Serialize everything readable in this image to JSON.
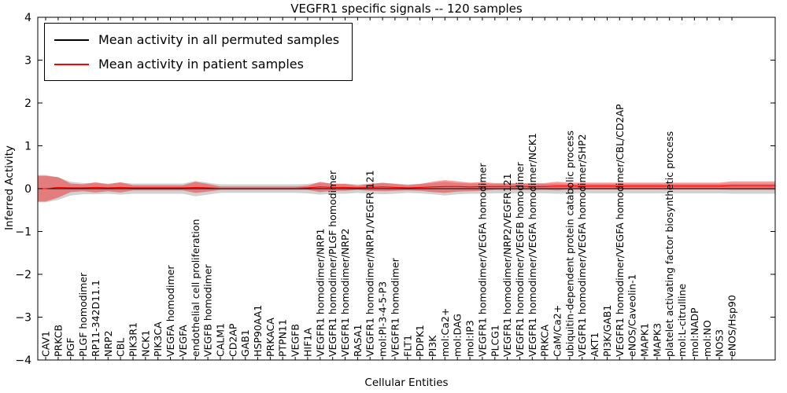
{
  "chart_data": {
    "type": "area",
    "title": "VEGFR1 specific signals -- 120 samples",
    "xlabel": "Cellular Entities",
    "ylabel": "Inferred Activity",
    "ylim": [
      -4,
      4
    ],
    "yticks": [
      -4,
      -3,
      -2,
      -1,
      0,
      1,
      2,
      3,
      4
    ],
    "grid": false,
    "legend_position": "upper-left",
    "legend": [
      {
        "label": "Mean activity in all permuted samples",
        "color": "#000000"
      },
      {
        "label": "Mean activity in patient samples",
        "color": "#ff0000"
      }
    ],
    "categories": [
      "CAV1",
      "PRKCB",
      "PGF",
      "PLGF homodimer",
      "RP11-342D11.1",
      "NRP2",
      "CBL",
      "PIK3R1",
      "NCK1",
      "PIK3CA",
      "VEGFA homodimer",
      "VEGFA",
      "endothelial cell proliferation",
      "VEGFB homodimer",
      "CALM1",
      "CD2AP",
      "GAB1",
      "HSP90AA1",
      "PRKACA",
      "PTPN11",
      "VEGFB",
      "HIF1A",
      "VEGFR1 homodimer/NRP1",
      "VEGFR1 homodimer/PLGF homodimer",
      "VEGFR1 homodimer/NRP2",
      "RASA1",
      "VEGFR1 homodimer/NRP1/VEGFR 121",
      "mol:PI-3-4-5-P3",
      "VEGFR1 homodimer",
      "FLT1",
      "PDPK1",
      "PI3K",
      "mol:Ca2+",
      "mol:DAG",
      "mol:IP3",
      "VEGFR1 homodimer/VEGFA homodimer",
      "PLCG1",
      "VEGFR1 homodimer/NRP2/VEGFR121",
      "VEGFR1 homodimer/VEGFB homodimer",
      "VEGFR1 homodimer/VEGFA homodimer/NCK1",
      "PRKCA",
      "CaM/Ca2+",
      "ubiquitin-dependent protein catabolic process",
      "VEGFR1 homodimer/VEGFA homodimer/SHP2",
      "AKT1",
      "PI3K/GAB1",
      "VEGFR1 homodimer/VEGFA homodimer/CBL/CD2AP",
      "eNOS/Caveolin-1",
      "MAPK1",
      "MAPK3",
      "platelet activating factor biosynthetic process",
      "mol:L-citrulline",
      "mol:NADP",
      "mol:NO",
      "NOS3",
      "eNOS/Hsp90"
    ],
    "series": [
      {
        "name": "Mean activity in all permuted samples",
        "line_color": "#000000",
        "band_color": "#999999",
        "band_opacity": 0.45,
        "mean": [
          0,
          0,
          0,
          0,
          0,
          0,
          0,
          0,
          0,
          0,
          0,
          0,
          0,
          0,
          0,
          0,
          0,
          0,
          0,
          0,
          0,
          0,
          0,
          0,
          0,
          0,
          0,
          0,
          0,
          0,
          0,
          0,
          0,
          0,
          0,
          0,
          0,
          0,
          0,
          0,
          0,
          0,
          0,
          0,
          0,
          0,
          0,
          0,
          0,
          0,
          0,
          0,
          0,
          0,
          0,
          0
        ],
        "band_half_width": [
          0.32,
          0.26,
          0.16,
          0.13,
          0.13,
          0.12,
          0.14,
          0.12,
          0.12,
          0.12,
          0.12,
          0.12,
          0.18,
          0.14,
          0.1,
          0.1,
          0.1,
          0.1,
          0.1,
          0.1,
          0.1,
          0.11,
          0.14,
          0.12,
          0.12,
          0.1,
          0.12,
          0.13,
          0.12,
          0.1,
          0.11,
          0.13,
          0.16,
          0.13,
          0.12,
          0.12,
          0.11,
          0.11,
          0.11,
          0.11,
          0.11,
          0.12,
          0.11,
          0.11,
          0.11,
          0.11,
          0.11,
          0.11,
          0.11,
          0.11,
          0.11,
          0.11,
          0.11,
          0.11,
          0.11,
          0.12
        ]
      },
      {
        "name": "Mean activity in patient samples",
        "line_color": "#ff0000",
        "band_color": "#ff0000",
        "band_opacity": 0.4,
        "mean": [
          0.0,
          0.03,
          0.02,
          0.02,
          0.03,
          0.02,
          0.03,
          0.02,
          0.02,
          0.02,
          0.02,
          0.02,
          0.03,
          0.02,
          0.01,
          0.01,
          0.01,
          0.01,
          0.01,
          0.01,
          0.01,
          0.02,
          0.04,
          0.03,
          0.03,
          0.02,
          0.03,
          0.04,
          0.03,
          0.02,
          0.03,
          0.04,
          0.05,
          0.05,
          0.04,
          0.05,
          0.05,
          0.05,
          0.05,
          0.05,
          0.05,
          0.06,
          0.06,
          0.06,
          0.06,
          0.06,
          0.06,
          0.06,
          0.06,
          0.06,
          0.06,
          0.06,
          0.06,
          0.06,
          0.06,
          0.07
        ],
        "band_half_width": [
          0.3,
          0.24,
          0.1,
          0.08,
          0.12,
          0.08,
          0.12,
          0.06,
          0.06,
          0.06,
          0.06,
          0.06,
          0.13,
          0.09,
          0.04,
          0.04,
          0.04,
          0.04,
          0.04,
          0.04,
          0.04,
          0.05,
          0.12,
          0.08,
          0.08,
          0.05,
          0.08,
          0.1,
          0.08,
          0.06,
          0.08,
          0.12,
          0.15,
          0.12,
          0.1,
          0.1,
          0.08,
          0.08,
          0.08,
          0.08,
          0.08,
          0.1,
          0.08,
          0.08,
          0.08,
          0.08,
          0.08,
          0.08,
          0.08,
          0.08,
          0.08,
          0.08,
          0.08,
          0.08,
          0.08,
          0.1
        ]
      }
    ]
  }
}
